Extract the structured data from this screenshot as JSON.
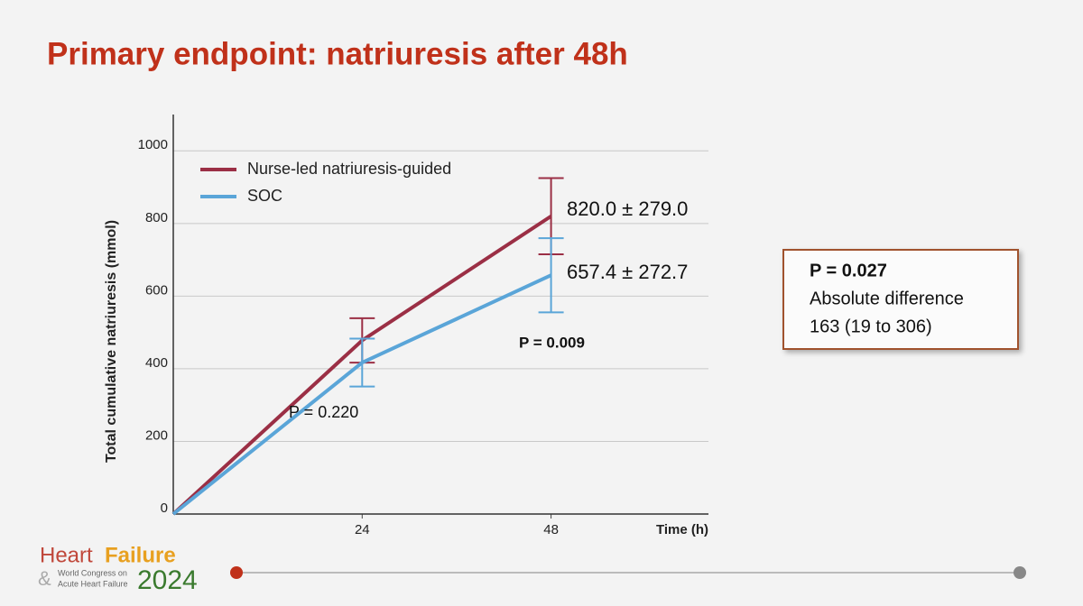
{
  "slide_title": "Primary endpoint: natriuresis after 48h",
  "chart_data": {
    "type": "line",
    "y_label": "Total cumulative natriuresis (mmol)",
    "x_label": "Time (h)",
    "x": [
      0,
      24,
      48
    ],
    "xlim": [
      0,
      68
    ],
    "xticks": [
      24,
      48
    ],
    "ylim": [
      0,
      1100
    ],
    "yticks": [
      0,
      200,
      400,
      600,
      800,
      1000
    ],
    "grid": true,
    "legend": "upper left",
    "series": [
      {
        "name": "Nurse-led natriuresis-guided",
        "color": "#9b2f45",
        "values": [
          0,
          478,
          820
        ],
        "errors": [
          null,
          61,
          105
        ]
      },
      {
        "name": "SOC",
        "color": "#5aa5d8",
        "values": [
          0,
          417,
          657.4
        ],
        "errors": [
          null,
          66,
          102
        ]
      }
    ],
    "annotations": [
      "820.0 ± 279.0",
      "657.4 ± 272.7",
      "P = 0.009",
      "P = 0.220"
    ]
  },
  "box": {
    "lines": [
      "P = 0.027",
      "Absolute difference",
      "163 (19 to 306)"
    ]
  },
  "footer": {
    "heart": "Heart",
    "failure": "Failure",
    "amp": "&",
    "congress1": "World Congress on",
    "congress2": "Acute Heart Failure",
    "year": "2024"
  }
}
